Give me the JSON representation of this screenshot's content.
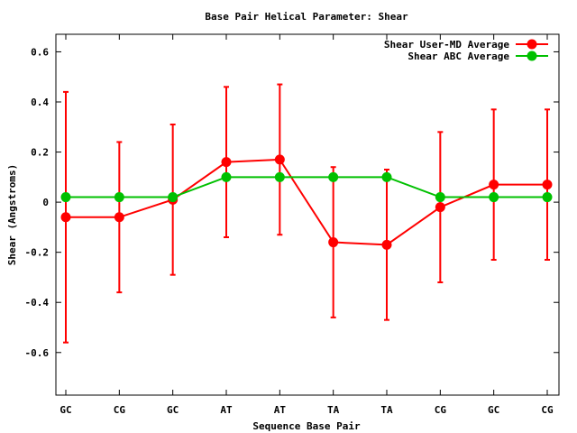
{
  "chart_data": {
    "type": "line",
    "title": "Base Pair Helical Parameter: Shear",
    "xlabel": "Sequence Base Pair",
    "ylabel": "Shear (Angstroms)",
    "categories": [
      "GC",
      "CG",
      "GC",
      "AT",
      "AT",
      "TA",
      "TA",
      "CG",
      "GC",
      "CG"
    ],
    "ylim": [
      -0.77,
      0.67
    ],
    "yticks": [
      -0.6,
      -0.4,
      -0.2,
      0,
      0.2,
      0.4,
      0.6
    ],
    "ytick_labels": [
      "-0.6",
      "-0.4",
      "-0.2",
      "0",
      "0.2",
      "0.4",
      "0.6"
    ],
    "grid": false,
    "legend_position": "top-right",
    "series": [
      {
        "name": "Shear User-MD Average",
        "color": "#ff0000",
        "values": [
          -0.06,
          -0.06,
          0.01,
          0.16,
          0.17,
          -0.16,
          -0.17,
          -0.02,
          0.07,
          0.07
        ],
        "error_low": [
          -0.56,
          -0.36,
          -0.29,
          -0.14,
          -0.13,
          -0.46,
          -0.47,
          -0.32,
          -0.23,
          -0.23
        ],
        "error_high": [
          0.44,
          0.24,
          0.31,
          0.46,
          0.47,
          0.14,
          0.13,
          0.28,
          0.37,
          0.37
        ]
      },
      {
        "name": "Shear ABC Average",
        "color": "#00c000",
        "values": [
          0.02,
          0.02,
          0.02,
          0.1,
          0.1,
          0.1,
          0.1,
          0.02,
          0.02,
          0.02
        ]
      }
    ]
  }
}
